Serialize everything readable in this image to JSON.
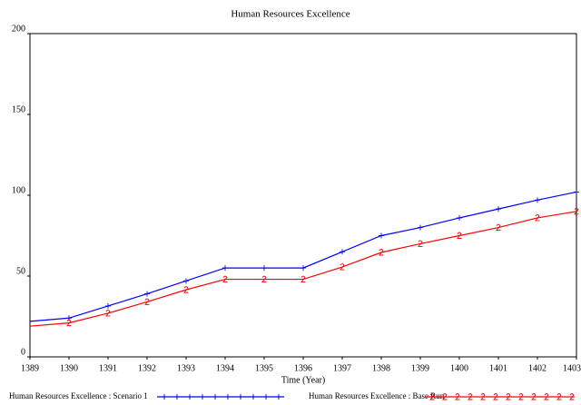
{
  "chart_data": {
    "type": "line",
    "title": "Human Resources Excellence",
    "x_label": "Time (Year)",
    "x": [
      1389,
      1390,
      1391,
      1392,
      1393,
      1394,
      1395,
      1396,
      1397,
      1398,
      1399,
      1400,
      1401,
      1402,
      1403
    ],
    "xlim": [
      1389,
      1403
    ],
    "xticks": [
      1389,
      1390,
      1391,
      1392,
      1393,
      1394,
      1395,
      1396,
      1397,
      1398,
      1399,
      1400,
      1401,
      1402,
      1403
    ],
    "ylim": [
      0,
      200
    ],
    "yticks": [
      0,
      50,
      100,
      150,
      200
    ],
    "grid": false,
    "series": [
      {
        "name": "Human Resources Excellence : Scenario 1",
        "color": "#0000ff",
        "values": [
          22,
          24,
          31.5,
          39,
          47,
          55,
          55,
          55,
          65,
          75,
          80,
          86,
          91.5,
          97,
          102
        ]
      },
      {
        "name": "Human Resources Excellence : Base Run",
        "color": "#ff0000",
        "values": [
          19,
          21,
          27,
          34,
          41.5,
          48,
          48,
          48,
          55.6,
          64.6,
          70,
          75,
          80,
          86,
          90
        ]
      }
    ]
  }
}
